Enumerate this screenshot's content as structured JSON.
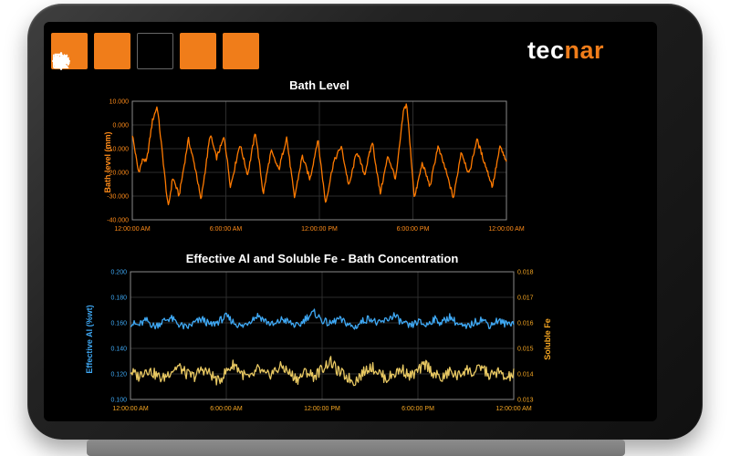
{
  "brand": {
    "logo_prefix": "tec",
    "logo_suffix": "nar"
  },
  "toolbar": {
    "buttons": [
      {
        "icon": "exit-icon",
        "active": false
      },
      {
        "icon": "video-camera-icon",
        "active": false
      },
      {
        "icon": "trend-chart-icon",
        "active": true
      },
      {
        "icon": "settings-gear-icon",
        "active": false
      },
      {
        "icon": "lock-refresh-icon",
        "active": false
      }
    ]
  },
  "colors": {
    "accent_orange": "#f07d1a",
    "chart_orange": "#ff7a00",
    "axis_orange": "#ff8c1a",
    "blue": "#3fa9f5",
    "yellow_line": "#e8c862",
    "yellow_axis": "#f5a623",
    "grid": "#2d2d2d",
    "plot_border": "#8a8a8a",
    "background": "#000000"
  },
  "chart_data": [
    {
      "type": "line",
      "title": "Bath Level",
      "ylabel": "Bath level (mm)",
      "xlabel": "",
      "xlim": [
        0,
        24
      ],
      "x_ticks": [
        0,
        6,
        12,
        18,
        24
      ],
      "x_tick_labels": [
        "12:00:00 AM",
        "6:00:00 AM",
        "12:00:00 PM",
        "6:00:00 PM",
        "12:00:00 AM"
      ],
      "ylim": [
        -40000,
        10000
      ],
      "y_ticks": [
        10000,
        0,
        -10000,
        -20000,
        -30000,
        -40000
      ],
      "y_tick_labels": [
        "10.000",
        "0.000",
        "-10.000",
        "-20.000",
        "-30.000",
        "-40.000"
      ],
      "grid": true,
      "legend": "none",
      "line_color": "#ff7a00",
      "axis_color": "#ff8c1a",
      "noise_amplitude": 1000,
      "series": [
        {
          "name": "Bath level",
          "points": [
            [
              0,
              -4000
            ],
            [
              0.4,
              -20000
            ],
            [
              0.7,
              -14000
            ],
            [
              0.9,
              -16000
            ],
            [
              1.3,
              2000
            ],
            [
              1.6,
              8000
            ],
            [
              2.3,
              -35000
            ],
            [
              2.6,
              -22000
            ],
            [
              3.0,
              -30000
            ],
            [
              3.6,
              -6000
            ],
            [
              4.1,
              -20000
            ],
            [
              4.4,
              -32000
            ],
            [
              5.0,
              -4000
            ],
            [
              5.4,
              -14000
            ],
            [
              5.9,
              -5000
            ],
            [
              6.3,
              -26000
            ],
            [
              6.9,
              -8000
            ],
            [
              7.4,
              -21000
            ],
            [
              7.9,
              -3000
            ],
            [
              8.4,
              -29000
            ],
            [
              8.9,
              -11000
            ],
            [
              9.4,
              -19000
            ],
            [
              9.9,
              -5000
            ],
            [
              10.4,
              -31000
            ],
            [
              10.9,
              -13000
            ],
            [
              11.4,
              -23000
            ],
            [
              11.9,
              -6000
            ],
            [
              12.4,
              -33000
            ],
            [
              12.9,
              -16000
            ],
            [
              13.4,
              -9000
            ],
            [
              13.9,
              -26000
            ],
            [
              14.4,
              -11000
            ],
            [
              14.9,
              -21000
            ],
            [
              15.4,
              -7000
            ],
            [
              15.9,
              -29000
            ],
            [
              16.4,
              -13000
            ],
            [
              16.9,
              -23000
            ],
            [
              17.4,
              6000
            ],
            [
              17.6,
              9000
            ],
            [
              18.1,
              -31000
            ],
            [
              18.6,
              -16000
            ],
            [
              19.1,
              -26000
            ],
            [
              19.6,
              -9000
            ],
            [
              20.1,
              -19000
            ],
            [
              20.6,
              -31000
            ],
            [
              21.1,
              -11000
            ],
            [
              21.6,
              -21000
            ],
            [
              22.1,
              -6000
            ],
            [
              22.6,
              -16000
            ],
            [
              23.1,
              -26000
            ],
            [
              23.6,
              -9000
            ],
            [
              24,
              -16000
            ]
          ]
        }
      ]
    },
    {
      "type": "line",
      "title": "Effective Al and Soluble Fe - Bath Concentration",
      "ylabel_left": "Effective Al (%wt)",
      "ylabel_right": "Soluble Fe",
      "xlim": [
        0,
        24
      ],
      "x_ticks": [
        0,
        6,
        12,
        18,
        24
      ],
      "x_tick_labels": [
        "12:00:00 AM",
        "6:00:00 AM",
        "12:00:00 PM",
        "6:00:00 PM",
        "12:00:00 AM"
      ],
      "x_axis_color": "#f5a623",
      "grid": true,
      "legend": "none",
      "left_axis": {
        "ylim": [
          0.1,
          0.2
        ],
        "ticks": [
          0.2,
          0.18,
          0.16,
          0.14,
          0.12,
          0.1
        ],
        "tick_labels": [
          "0.200",
          "0.180",
          "0.160",
          "0.140",
          "0.120",
          "0.100"
        ],
        "color": "#3fa9f5"
      },
      "right_axis": {
        "ylim": [
          0.013,
          0.018
        ],
        "ticks": [
          0.018,
          0.017,
          0.016,
          0.015,
          0.014,
          0.013
        ],
        "tick_labels": [
          "0.018",
          "0.017",
          "0.016",
          "0.015",
          "0.014",
          "0.013"
        ],
        "color": "#f5a623"
      },
      "series": [
        {
          "name": "Effective Al",
          "axis": "left",
          "color": "#3fa9f5",
          "x_step": 0.5,
          "noise_amplitude": 0.003,
          "values": [
            0.16,
            0.158,
            0.162,
            0.157,
            0.161,
            0.164,
            0.159,
            0.156,
            0.16,
            0.163,
            0.158,
            0.161,
            0.165,
            0.16,
            0.157,
            0.162,
            0.166,
            0.161,
            0.158,
            0.163,
            0.16,
            0.157,
            0.164,
            0.168,
            0.162,
            0.159,
            0.163,
            0.16,
            0.156,
            0.161,
            0.164,
            0.159,
            0.162,
            0.166,
            0.16,
            0.157,
            0.161,
            0.158,
            0.163,
            0.16,
            0.165,
            0.159,
            0.156,
            0.16,
            0.163,
            0.158,
            0.162,
            0.159,
            0.161
          ]
        },
        {
          "name": "Soluble Fe",
          "axis": "right",
          "color": "#e8c862",
          "x_step": 0.5,
          "noise_amplitude": 0.00022,
          "values": [
            0.0141,
            0.0139,
            0.0142,
            0.014,
            0.0138,
            0.0141,
            0.0143,
            0.014,
            0.0139,
            0.0142,
            0.014,
            0.0137,
            0.0141,
            0.0144,
            0.014,
            0.0138,
            0.0142,
            0.0139,
            0.0141,
            0.0143,
            0.014,
            0.0138,
            0.0141,
            0.0139,
            0.0142,
            0.0145,
            0.0141,
            0.0139,
            0.0137,
            0.014,
            0.0143,
            0.0141,
            0.0138,
            0.014,
            0.0142,
            0.0139,
            0.0141,
            0.0144,
            0.014,
            0.0138,
            0.0141,
            0.0139,
            0.0142,
            0.014,
            0.0143,
            0.0139,
            0.0141,
            0.0138,
            0.014
          ]
        }
      ]
    }
  ]
}
